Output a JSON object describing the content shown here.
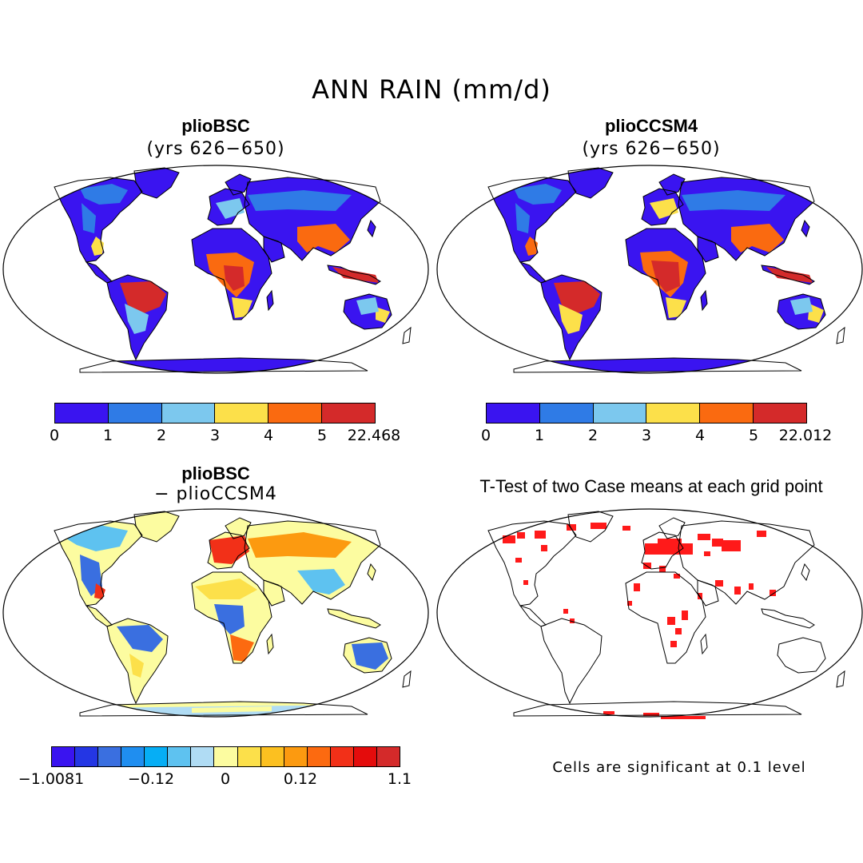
{
  "title": "ANN RAIN (mm/d)",
  "panels": {
    "top_left": {
      "title": "plioBSC",
      "subtitle": "(yrs 626−650)"
    },
    "top_right": {
      "title": "plioCCSM4",
      "subtitle": "(yrs 626−650)"
    },
    "bottom_left": {
      "title": "plioBSC",
      "subtitle": "− plioCCSM4"
    },
    "bottom_right": {
      "title": "T-Test of two Case means at each grid point"
    }
  },
  "colorbars": {
    "top_left": {
      "colors": [
        "#3a14f0",
        "#2f7be6",
        "#7cc8ee",
        "#fce04a",
        "#fa6a10",
        "#d42a2a"
      ],
      "labels": [
        "0",
        "1",
        "2",
        "3",
        "4",
        "5",
        "22.468"
      ]
    },
    "top_right": {
      "colors": [
        "#3a14f0",
        "#2f7be6",
        "#7cc8ee",
        "#fce04a",
        "#fa6a10",
        "#d42a2a"
      ],
      "labels": [
        "0",
        "1",
        "2",
        "3",
        "4",
        "5",
        "22.012"
      ]
    },
    "bottom_left": {
      "colors": [
        "#3a14f0",
        "#2436e4",
        "#3a6fe0",
        "#1f8ef0",
        "#06aef5",
        "#5ec2f0",
        "#b0dcf4",
        "#fcfca0",
        "#fce04a",
        "#fcc020",
        "#fc9a10",
        "#fc6a10",
        "#f23018",
        "#e40c0c",
        "#d42a2a"
      ],
      "labels": [
        "−1.0081",
        "−0.12",
        "0",
        "0.12",
        "1.1"
      ]
    }
  },
  "note": "Cells are significant at 0.1 level",
  "map_colors": {
    "outline": "#000000",
    "low_rain": "#3a14f0",
    "mid_rain": "#2f7be6",
    "high_rain": "#d42a2a",
    "significant": "#ff1a1a"
  }
}
